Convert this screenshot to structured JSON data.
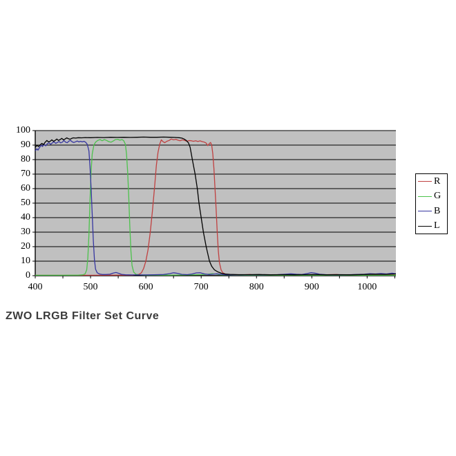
{
  "title": "ZWO LRGB Filter Set Curve",
  "colors": {
    "plot_background": "#c0c0c0",
    "gridline": "#000000",
    "axis": "#000000",
    "page_background": "#ffffff",
    "title_text": "#3b3b3b"
  },
  "legend": {
    "entries": [
      {
        "label": "R",
        "color": "#c04040"
      },
      {
        "label": "G",
        "color": "#4cc24c"
      },
      {
        "label": "B",
        "color": "#3535a0"
      },
      {
        "label": "L",
        "color": "#000000"
      }
    ]
  },
  "chart_data": {
    "type": "line",
    "title": "ZWO LRGB Filter Set Curve",
    "xlabel": "",
    "ylabel": "",
    "xlim": [
      400,
      1052
    ],
    "ylim": [
      0,
      100
    ],
    "x_ticks": [
      400,
      500,
      600,
      700,
      800,
      900,
      1000
    ],
    "x_minor_tick_step": 50,
    "y_ticks": [
      0,
      10,
      20,
      30,
      40,
      50,
      60,
      70,
      80,
      90,
      100
    ],
    "grid": "horizontal",
    "legend_position": "right",
    "series": [
      {
        "name": "R",
        "color": "#c04040",
        "points": [
          [
            400,
            0.3
          ],
          [
            500,
            0.3
          ],
          [
            560,
            0.4
          ],
          [
            575,
            0.4
          ],
          [
            583,
            0.6
          ],
          [
            588,
            1
          ],
          [
            592,
            2
          ],
          [
            596,
            5
          ],
          [
            600,
            10
          ],
          [
            604,
            18
          ],
          [
            608,
            30
          ],
          [
            612,
            45
          ],
          [
            616,
            62
          ],
          [
            619,
            76
          ],
          [
            622,
            85
          ],
          [
            625,
            90.5
          ],
          [
            628,
            93.6
          ],
          [
            631,
            92.4
          ],
          [
            634,
            91.6
          ],
          [
            638,
            92.6
          ],
          [
            642,
            93.2
          ],
          [
            646,
            94.2
          ],
          [
            650,
            93.6
          ],
          [
            654,
            94
          ],
          [
            658,
            93.4
          ],
          [
            662,
            93
          ],
          [
            666,
            93.6
          ],
          [
            670,
            93.2
          ],
          [
            674,
            92.6
          ],
          [
            678,
            93.1
          ],
          [
            682,
            93
          ],
          [
            686,
            92.6
          ],
          [
            690,
            93
          ],
          [
            694,
            92.5
          ],
          [
            698,
            92.9
          ],
          [
            702,
            92.4
          ],
          [
            706,
            92
          ],
          [
            709,
            91.4
          ],
          [
            712,
            89.6
          ],
          [
            715,
            91.2
          ],
          [
            717,
            91.8
          ],
          [
            719,
            90
          ],
          [
            721,
            84
          ],
          [
            723,
            74
          ],
          [
            725,
            60
          ],
          [
            727,
            46
          ],
          [
            729,
            30
          ],
          [
            731,
            17
          ],
          [
            733,
            9
          ],
          [
            736,
            4
          ],
          [
            739,
            2
          ],
          [
            743,
            1.2
          ],
          [
            749,
            0.6
          ],
          [
            765,
            0.4
          ],
          [
            788,
            0.8
          ],
          [
            794,
            0.5
          ],
          [
            820,
            0.4
          ],
          [
            863,
            0.8
          ],
          [
            870,
            0.5
          ],
          [
            900,
            0.4
          ],
          [
            945,
            0.8
          ],
          [
            953,
            0.5
          ],
          [
            983,
            0.7
          ],
          [
            1000,
            0.4
          ],
          [
            1052,
            0.4
          ]
        ]
      },
      {
        "name": "G",
        "color": "#4cc24c",
        "points": [
          [
            400,
            0.3
          ],
          [
            450,
            0.3
          ],
          [
            478,
            0.4
          ],
          [
            486,
            0.6
          ],
          [
            490,
            1.2
          ],
          [
            493,
            4
          ],
          [
            495,
            12
          ],
          [
            497,
            28
          ],
          [
            499,
            52
          ],
          [
            501,
            72
          ],
          [
            503,
            84
          ],
          [
            506,
            90
          ],
          [
            509,
            92
          ],
          [
            513,
            93.2
          ],
          [
            517,
            93.8
          ],
          [
            521,
            93
          ],
          [
            525,
            93.8
          ],
          [
            529,
            93.2
          ],
          [
            533,
            92.4
          ],
          [
            537,
            92
          ],
          [
            541,
            92.8
          ],
          [
            545,
            93.8
          ],
          [
            549,
            94
          ],
          [
            553,
            93.4
          ],
          [
            557,
            93.8
          ],
          [
            560,
            93
          ],
          [
            563,
            90.5
          ],
          [
            565,
            84
          ],
          [
            567,
            72
          ],
          [
            569,
            55
          ],
          [
            571,
            34
          ],
          [
            573,
            17
          ],
          [
            575,
            7
          ],
          [
            578,
            2.5
          ],
          [
            582,
            1
          ],
          [
            588,
            0.5
          ],
          [
            600,
            0.4
          ],
          [
            640,
            0.4
          ],
          [
            680,
            0.5
          ],
          [
            700,
            0.7
          ],
          [
            712,
            1
          ],
          [
            720,
            1.4
          ],
          [
            728,
            1
          ],
          [
            736,
            0.5
          ],
          [
            780,
            0.3
          ],
          [
            850,
            0.3
          ],
          [
            950,
            0.3
          ],
          [
            1052,
            0.3
          ]
        ]
      },
      {
        "name": "B",
        "color": "#3535a0",
        "points": [
          [
            400,
            86
          ],
          [
            403,
            87.5
          ],
          [
            405,
            86.5
          ],
          [
            408,
            88.5
          ],
          [
            411,
            90
          ],
          [
            413,
            89
          ],
          [
            416,
            90.5
          ],
          [
            419,
            89.5
          ],
          [
            422,
            91
          ],
          [
            425,
            91.5
          ],
          [
            428,
            90.5
          ],
          [
            431,
            91.5
          ],
          [
            434,
            92.3
          ],
          [
            437,
            91.2
          ],
          [
            440,
            91.8
          ],
          [
            443,
            92.5
          ],
          [
            446,
            91.5
          ],
          [
            449,
            92
          ],
          [
            452,
            93.2
          ],
          [
            455,
            92
          ],
          [
            458,
            91.6
          ],
          [
            461,
            92.8
          ],
          [
            464,
            93.2
          ],
          [
            467,
            92.2
          ],
          [
            470,
            91.8
          ],
          [
            473,
            92.3
          ],
          [
            476,
            92.8
          ],
          [
            479,
            92.2
          ],
          [
            482,
            92.6
          ],
          [
            485,
            92.2
          ],
          [
            488,
            92.6
          ],
          [
            491,
            92
          ],
          [
            494,
            90.5
          ],
          [
            497,
            86
          ],
          [
            499,
            75
          ],
          [
            501,
            60
          ],
          [
            503,
            42
          ],
          [
            505,
            24
          ],
          [
            507,
            11
          ],
          [
            509,
            4.5
          ],
          [
            512,
            2
          ],
          [
            516,
            1.2
          ],
          [
            521,
            0.8
          ],
          [
            528,
            0.8
          ],
          [
            535,
            1
          ],
          [
            541,
            1.8
          ],
          [
            546,
            2.2
          ],
          [
            551,
            1.6
          ],
          [
            556,
            0.9
          ],
          [
            563,
            0.6
          ],
          [
            575,
            0.5
          ],
          [
            595,
            0.5
          ],
          [
            615,
            0.6
          ],
          [
            632,
            0.8
          ],
          [
            643,
            1.4
          ],
          [
            650,
            2
          ],
          [
            657,
            1.6
          ],
          [
            665,
            0.9
          ],
          [
            675,
            0.7
          ],
          [
            684,
            1.2
          ],
          [
            691,
            1.9
          ],
          [
            698,
            2
          ],
          [
            706,
            1.2
          ],
          [
            714,
            0.8
          ],
          [
            722,
            1
          ],
          [
            728,
            1.3
          ],
          [
            736,
            0.9
          ],
          [
            745,
            0.6
          ],
          [
            765,
            0.5
          ],
          [
            790,
            0.6
          ],
          [
            815,
            0.5
          ],
          [
            838,
            0.7
          ],
          [
            852,
            1
          ],
          [
            862,
            1.3
          ],
          [
            872,
            1
          ],
          [
            882,
            0.8
          ],
          [
            892,
            1.5
          ],
          [
            899,
            2.1
          ],
          [
            906,
            1.7
          ],
          [
            914,
            1
          ],
          [
            928,
            0.6
          ],
          [
            945,
            0.5
          ],
          [
            962,
            0.6
          ],
          [
            980,
            0.8
          ],
          [
            995,
            1
          ],
          [
            1005,
            1.4
          ],
          [
            1015,
            1.2
          ],
          [
            1025,
            1.5
          ],
          [
            1035,
            1.2
          ],
          [
            1045,
            1.7
          ],
          [
            1052,
            1.3
          ]
        ]
      },
      {
        "name": "L",
        "color": "#000000",
        "points": [
          [
            400,
            88.5
          ],
          [
            403,
            89.8
          ],
          [
            406,
            89
          ],
          [
            409,
            90.2
          ],
          [
            412,
            91.2
          ],
          [
            415,
            90.4
          ],
          [
            418,
            92
          ],
          [
            421,
            93.2
          ],
          [
            424,
            92.2
          ],
          [
            427,
            92.6
          ],
          [
            430,
            93.6
          ],
          [
            433,
            92.6
          ],
          [
            436,
            93.2
          ],
          [
            439,
            94.2
          ],
          [
            442,
            93.2
          ],
          [
            445,
            93.8
          ],
          [
            448,
            94.6
          ],
          [
            451,
            93.6
          ],
          [
            454,
            94.2
          ],
          [
            457,
            95
          ],
          [
            460,
            94.4
          ],
          [
            463,
            94
          ],
          [
            466,
            94.6
          ],
          [
            469,
            95
          ],
          [
            473,
            94.8
          ],
          [
            478,
            95.1
          ],
          [
            484,
            95
          ],
          [
            490,
            95.2
          ],
          [
            500,
            95.1
          ],
          [
            512,
            95.3
          ],
          [
            524,
            95.2
          ],
          [
            536,
            95.4
          ],
          [
            548,
            95.3
          ],
          [
            560,
            95.4
          ],
          [
            572,
            95.3
          ],
          [
            584,
            95.4
          ],
          [
            596,
            95.5
          ],
          [
            608,
            95.4
          ],
          [
            620,
            95.4
          ],
          [
            632,
            95.5
          ],
          [
            644,
            95.4
          ],
          [
            652,
            95.3
          ],
          [
            660,
            95.1
          ],
          [
            665,
            94.8
          ],
          [
            669,
            94.2
          ],
          [
            673,
            93.2
          ],
          [
            677,
            91.5
          ],
          [
            680,
            88.5
          ],
          [
            684,
            80
          ],
          [
            689,
            70
          ],
          [
            693,
            60
          ],
          [
            696,
            50
          ],
          [
            700,
            40
          ],
          [
            704,
            30
          ],
          [
            709,
            20
          ],
          [
            715,
            10
          ],
          [
            719,
            6.5
          ],
          [
            724,
            4
          ],
          [
            730,
            2.6
          ],
          [
            737,
            1.6
          ],
          [
            744,
            1.1
          ],
          [
            752,
            0.9
          ],
          [
            768,
            0.7
          ],
          [
            785,
            0.7
          ],
          [
            805,
            0.8
          ],
          [
            825,
            0.6
          ],
          [
            845,
            0.7
          ],
          [
            868,
            0.6
          ],
          [
            888,
            0.7
          ],
          [
            905,
            0.8
          ],
          [
            925,
            0.6
          ],
          [
            948,
            0.7
          ],
          [
            970,
            0.6
          ],
          [
            992,
            0.8
          ],
          [
            1012,
            1
          ],
          [
            1032,
            0.9
          ],
          [
            1052,
            1.2
          ]
        ]
      }
    ]
  }
}
